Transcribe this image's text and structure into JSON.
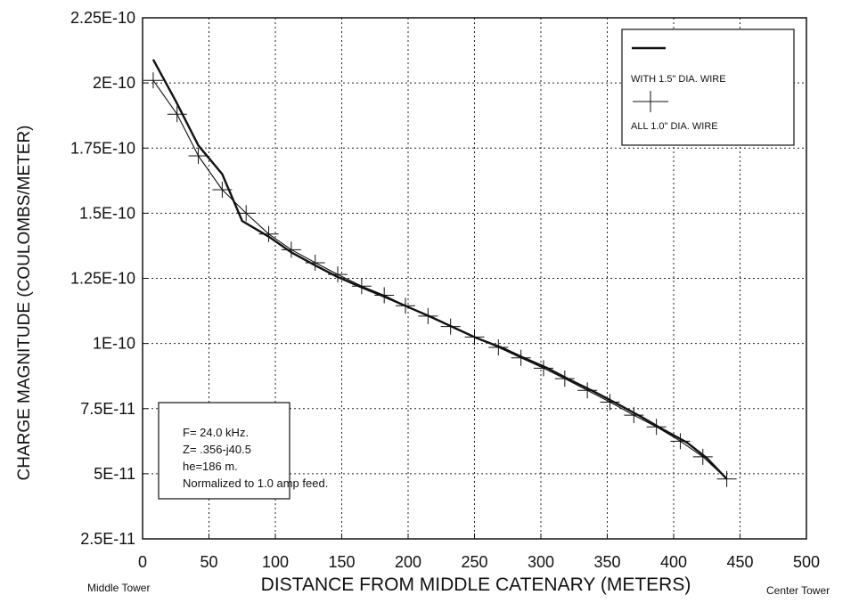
{
  "chart_data": {
    "type": "line",
    "title": "",
    "xlabel": "DISTANCE FROM MIDDLE CATENARY (METERS)",
    "ylabel": "CHARGE MAGNITUDE (COULOMBS/METER)",
    "x_left_note": "Middle Tower",
    "x_right_note": "Center Tower",
    "xlim": [
      0,
      500
    ],
    "ylim": [
      2.5e-11,
      2.25e-10
    ],
    "x_ticks": [
      0,
      50,
      100,
      150,
      200,
      250,
      300,
      350,
      400,
      450,
      500
    ],
    "x_tick_labels": [
      "0",
      "50",
      "100",
      "150",
      "200",
      "250",
      "300",
      "350",
      "400",
      "450",
      "500"
    ],
    "y_ticks": [
      2.5e-11,
      5e-11,
      7.5e-11,
      1e-10,
      1.25e-10,
      1.5e-10,
      1.75e-10,
      2e-10,
      2.25e-10
    ],
    "y_tick_labels": [
      "2.5E-11",
      "5E-11",
      "7.5E-11",
      "1E-10",
      "1.25E-10",
      "1.5E-10",
      "1.75E-10",
      "2E-10",
      "2.25E-10"
    ],
    "grid": true,
    "legend_placement": "top-right",
    "series": [
      {
        "name": "WITH 1.5\" DIA. WIRE",
        "style": "solid-thick",
        "x": [
          8,
          25,
          42,
          60,
          75,
          95,
          112,
          130,
          147,
          165,
          182,
          200,
          218,
          235,
          252,
          270,
          287,
          305,
          322,
          340,
          357,
          375,
          392,
          410,
          425,
          440
        ],
        "y": [
          2.09e-10,
          1.93e-10,
          1.76e-10,
          1.65e-10,
          1.47e-10,
          1.41e-10,
          1.35e-10,
          1.3e-10,
          1.255e-10,
          1.215e-10,
          1.18e-10,
          1.14e-10,
          1.1e-10,
          1.06e-10,
          1.02e-10,
          9.85e-11,
          9.45e-11,
          9.05e-11,
          8.6e-11,
          8.15e-11,
          7.7e-11,
          7.2e-11,
          6.7e-11,
          6.2e-11,
          5.6e-11,
          4.8e-11
        ]
      },
      {
        "name": "ALL 1.0\" DIA. WIRE",
        "style": "thin-with-plus-markers",
        "x": [
          8,
          26,
          42,
          60,
          78,
          95,
          112,
          130,
          147,
          165,
          182,
          198,
          215,
          232,
          250,
          268,
          285,
          302,
          318,
          335,
          352,
          370,
          387,
          405,
          422,
          440
        ],
        "y": [
          2.01e-10,
          1.88e-10,
          1.72e-10,
          1.59e-10,
          1.5e-10,
          1.42e-10,
          1.36e-10,
          1.31e-10,
          1.265e-10,
          1.22e-10,
          1.185e-10,
          1.145e-10,
          1.105e-10,
          1.065e-10,
          1.025e-10,
          9.85e-11,
          9.45e-11,
          9.05e-11,
          8.65e-11,
          8.2e-11,
          7.75e-11,
          7.25e-11,
          6.8e-11,
          6.25e-11,
          5.65e-11,
          4.8e-11
        ]
      }
    ],
    "annotation_lines": [
      "F= 24.0 kHz.",
      "Z= .356-j40.5",
      "he=186 m.",
      "Normalized to 1.0 amp feed."
    ]
  }
}
